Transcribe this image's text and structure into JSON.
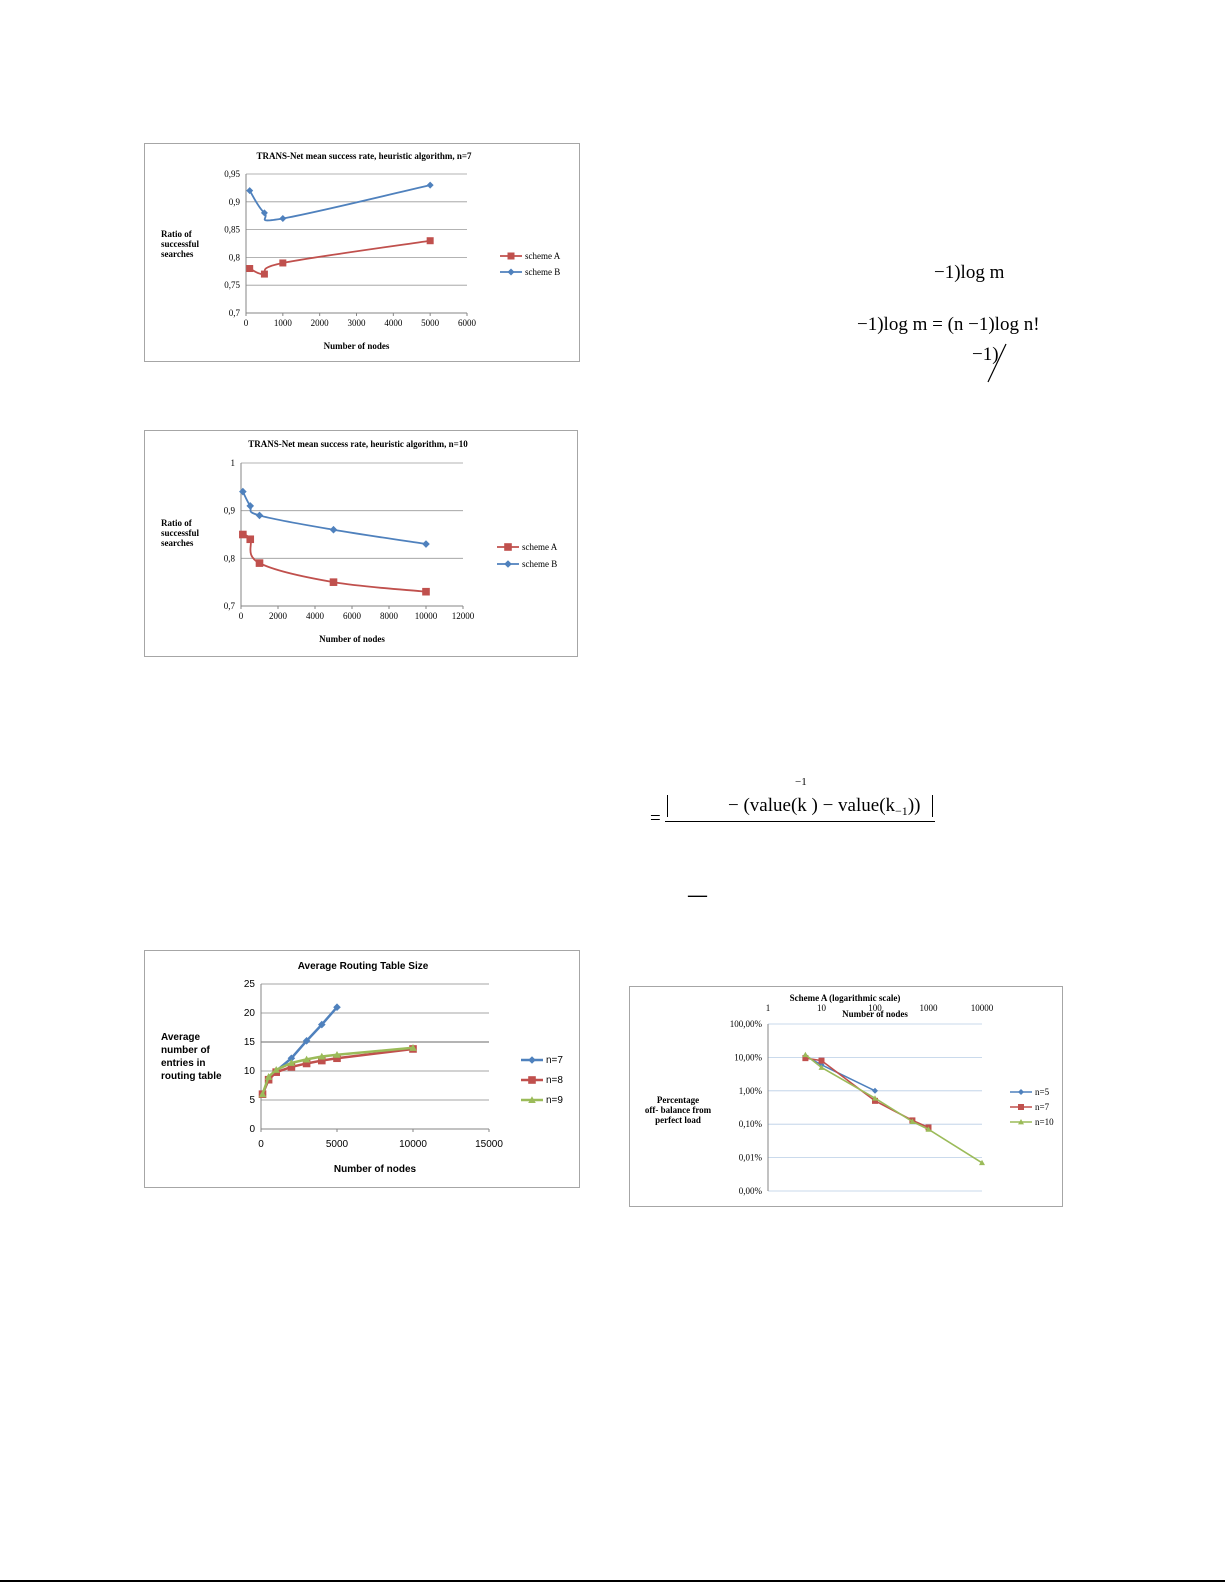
{
  "chart_data": [
    {
      "id": "chart1",
      "type": "line",
      "title": "TRANS-Net mean success rate, heuristic algorithm, n=7",
      "xlabel": "Number of nodes",
      "ylabel": [
        "Ratio of",
        "successful",
        "searches"
      ],
      "xlim": [
        0,
        6000
      ],
      "ylim": [
        0.7,
        0.95
      ],
      "xticks": [
        0,
        1000,
        2000,
        3000,
        4000,
        5000,
        6000
      ],
      "yticks": [
        0.7,
        0.75,
        0.8,
        0.85,
        0.9,
        0.95
      ],
      "xtick_labels": [
        "0",
        "1000",
        "2000",
        "3000",
        "4000",
        "5000",
        "6000"
      ],
      "ytick_labels": [
        "0,7",
        "0,75",
        "0,8",
        "0,85",
        "0,9",
        "0,95"
      ],
      "grid": true,
      "legend_position": "right",
      "series": [
        {
          "name": "scheme A",
          "color": "#c0504d",
          "marker": "square",
          "x": [
            100,
            500,
            1000,
            5000
          ],
          "y": [
            0.78,
            0.77,
            0.79,
            0.83
          ]
        },
        {
          "name": "scheme B",
          "color": "#4f81bd",
          "marker": "diamond",
          "x": [
            100,
            500,
            1000,
            5000
          ],
          "y": [
            0.92,
            0.88,
            0.87,
            0.93
          ]
        }
      ]
    },
    {
      "id": "chart2",
      "type": "line",
      "title": "TRANS-Net mean success rate, heuristic algorithm, n=10",
      "xlabel": "Number of nodes",
      "ylabel": [
        "Ratio of",
        "successful",
        "searches"
      ],
      "xlim": [
        0,
        12000
      ],
      "ylim": [
        0.7,
        1
      ],
      "xticks": [
        0,
        2000,
        4000,
        6000,
        8000,
        10000,
        12000
      ],
      "yticks": [
        0.7,
        0.8,
        0.9,
        1
      ],
      "xtick_labels": [
        "0",
        "2000",
        "4000",
        "6000",
        "8000",
        "10000",
        "12000"
      ],
      "ytick_labels": [
        "0,7",
        "0,8",
        "0,9",
        "1"
      ],
      "grid": true,
      "legend_position": "right",
      "series": [
        {
          "name": "scheme A",
          "color": "#c0504d",
          "marker": "square",
          "x": [
            100,
            500,
            1000,
            5000,
            10000
          ],
          "y": [
            0.85,
            0.84,
            0.79,
            0.75,
            0.73
          ]
        },
        {
          "name": "scheme B",
          "color": "#4f81bd",
          "marker": "diamond",
          "x": [
            100,
            500,
            1000,
            5000,
            10000
          ],
          "y": [
            0.94,
            0.91,
            0.89,
            0.86,
            0.83
          ]
        }
      ]
    },
    {
      "id": "chart3",
      "type": "line",
      "title": "Average Routing Table Size",
      "xlabel": "Number of nodes",
      "ylabel": [
        "Average",
        "number of",
        "entries in",
        "routing table"
      ],
      "xlim": [
        0,
        15000
      ],
      "ylim": [
        0,
        25
      ],
      "xticks": [
        0,
        5000,
        10000,
        15000
      ],
      "yticks": [
        0,
        5,
        10,
        15,
        20,
        25
      ],
      "xtick_labels": [
        "0",
        "5000",
        "10000",
        "15000"
      ],
      "ytick_labels": [
        "0",
        "5",
        "10",
        "15",
        "20",
        "25"
      ],
      "grid": true,
      "legend_position": "right",
      "series": [
        {
          "name": "n=7",
          "color": "#4f81bd",
          "marker": "diamond",
          "x": [
            100,
            500,
            1000,
            2000,
            3000,
            4000,
            5000
          ],
          "y": [
            6,
            8.5,
            10,
            12.2,
            15.2,
            18,
            21
          ]
        },
        {
          "name": "n=8",
          "color": "#c0504d",
          "marker": "square",
          "x": [
            100,
            500,
            1000,
            2000,
            3000,
            4000,
            5000,
            10000
          ],
          "y": [
            6,
            8.5,
            9.8,
            10.7,
            11.3,
            11.8,
            12.2,
            13.8
          ]
        },
        {
          "name": "n=9",
          "color": "#9bbb59",
          "marker": "triangle",
          "x": [
            100,
            500,
            1000,
            2000,
            3000,
            4000,
            5000,
            10000
          ],
          "y": [
            6,
            9,
            10.2,
            11.4,
            12,
            12.5,
            12.8,
            14
          ]
        }
      ]
    },
    {
      "id": "chart4",
      "type": "line",
      "title": "Scheme A (logarithmic scale)",
      "xlabel": "Number of nodes",
      "ylabel": [
        "Percentage",
        "off- balance from",
        "perfect load"
      ],
      "xscale": "log",
      "yscale": "log",
      "xlim": [
        1,
        10000
      ],
      "ylim": [
        0.001,
        100
      ],
      "xticks": [
        1,
        10,
        100,
        1000,
        10000
      ],
      "yticks": [
        100,
        10,
        1,
        0.1,
        0.01,
        0.001
      ],
      "xtick_labels": [
        "1",
        "10",
        "100",
        "1000",
        "10000"
      ],
      "ytick_labels": [
        "100,00%",
        "10,00%",
        "1,00%",
        "0,10%",
        "0,01%",
        "0,00%"
      ],
      "xaxis_position": "top",
      "grid": true,
      "legend_position": "right",
      "series": [
        {
          "name": "n=5",
          "color": "#4f81bd",
          "marker": "diamond",
          "x": [
            5,
            10,
            100
          ],
          "y": [
            11,
            6,
            1
          ]
        },
        {
          "name": "n=7",
          "color": "#c0504d",
          "marker": "square",
          "x": [
            5,
            10,
            100,
            500,
            1000
          ],
          "y": [
            9.5,
            8,
            0.5,
            0.13,
            0.08
          ]
        },
        {
          "name": "n=10",
          "color": "#9bbb59",
          "marker": "triangle",
          "x": [
            5,
            10,
            100,
            500,
            1000,
            10000
          ],
          "y": [
            12,
            5,
            0.6,
            0.12,
            0.07,
            0.007
          ]
        }
      ]
    }
  ],
  "math": {
    "f1": "−1)log  m",
    "f2": "−1)log  m = (n −1)log   n!",
    "f3": "−1)",
    "f4_sup": "−1",
    "f4_lhs": "=",
    "f4_a": "− (value(k  ) − value(k",
    "f4_sub": "−1",
    "f4_b": "))",
    "f5": "—"
  }
}
